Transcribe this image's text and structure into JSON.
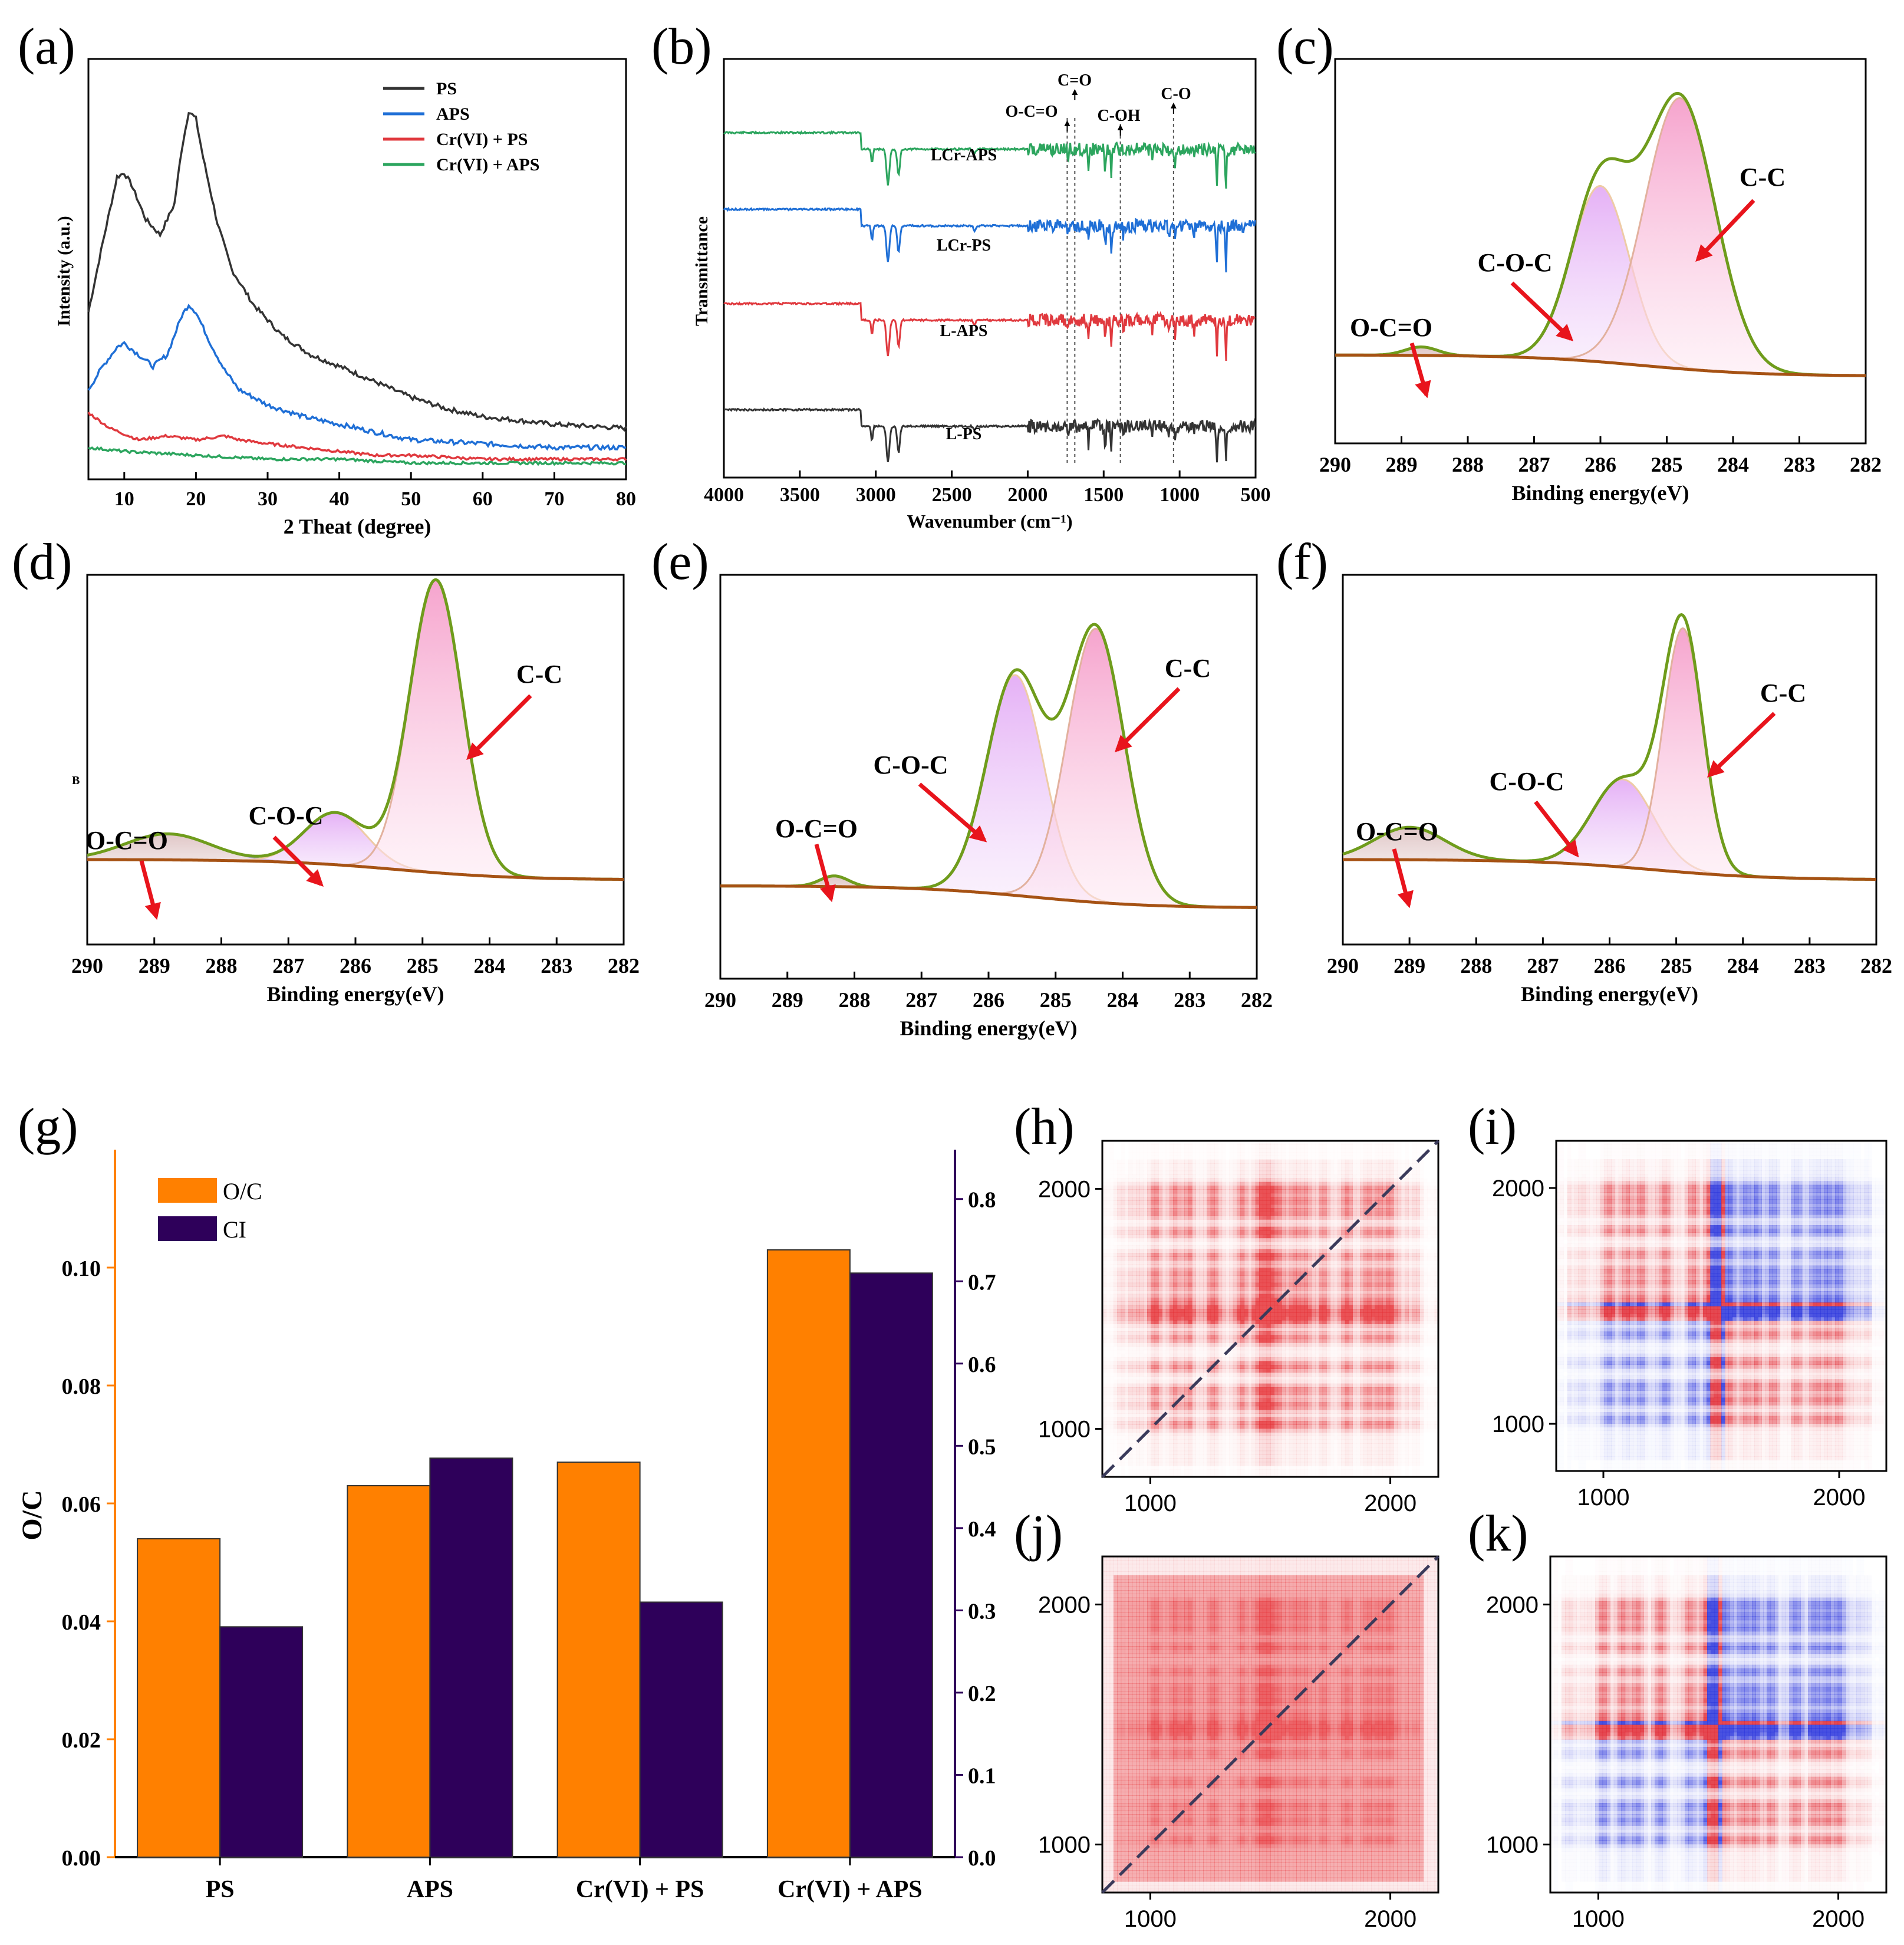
{
  "panels": {
    "a": {
      "label": "(a)",
      "xlabel": "2 Theat (degree)",
      "ylabel": "Intensity (a.u.)",
      "xticks": [
        "10",
        "20",
        "30",
        "40",
        "50",
        "60",
        "70",
        "80"
      ],
      "legend": [
        "PS",
        "APS",
        "Cr(VI) + PS",
        "Cr(VI) + APS"
      ],
      "colors": [
        "#333333",
        "#1f6fd6",
        "#e0393e",
        "#2ca55e"
      ]
    },
    "b": {
      "label": "(b)",
      "xlabel": "Wavenumber (cm⁻¹)",
      "ylabel": "Transmittance",
      "xticks": [
        "4000",
        "3500",
        "3000",
        "2500",
        "2000",
        "1500",
        "1000",
        "500"
      ],
      "series": [
        "LCr-APS",
        "LCr-PS",
        "L-APS",
        "L-PS"
      ],
      "bands": [
        "O-C=O",
        "C=O",
        "C-OH",
        "C-O"
      ]
    },
    "xps_common": {
      "xlabel": "Binding energy(eV)",
      "xticks": [
        "290",
        "289",
        "288",
        "287",
        "286",
        "285",
        "284",
        "283",
        "282"
      ],
      "peaks": [
        "O-C=O",
        "C-O-C",
        "C-C"
      ]
    },
    "c": {
      "label": "(c)"
    },
    "d": {
      "label": "(d)",
      "ylabel_small": "B"
    },
    "e": {
      "label": "(e)"
    },
    "f": {
      "label": "(f)"
    },
    "g": {
      "label": "(g)"
    },
    "h": {
      "label": "(h)",
      "ticks": [
        "1000",
        "2000"
      ]
    },
    "i": {
      "label": "(i)",
      "ticks": [
        "1000",
        "2000"
      ]
    },
    "j": {
      "label": "(j)",
      "ticks": [
        "1000",
        "2000"
      ]
    },
    "k": {
      "label": "(k)",
      "ticks": [
        "1000",
        "2000"
      ]
    }
  },
  "chart_data": [
    {
      "panel": "a",
      "type": "line",
      "title": "",
      "xlabel": "2 Theat (degree)",
      "ylabel": "Intensity (a.u.)",
      "xlim": [
        5,
        80
      ],
      "ylim": [
        0,
        100
      ],
      "series": [
        {
          "name": "PS",
          "color": "#333333",
          "x": [
            5,
            7,
            9,
            10,
            11,
            13,
            15,
            17,
            18,
            19,
            20,
            21,
            23,
            25,
            28,
            32,
            36,
            40,
            45,
            50,
            55,
            60,
            70,
            80
          ],
          "y": [
            42,
            60,
            77,
            78,
            75,
            66,
            62,
            70,
            84,
            94,
            92,
            82,
            65,
            53,
            44,
            36,
            31,
            28,
            24,
            20,
            17,
            15,
            13,
            12
          ]
        },
        {
          "name": "APS",
          "color": "#1f6fd6",
          "x": [
            5,
            7,
            9,
            10,
            12,
            14,
            16,
            18,
            19,
            20,
            22,
            24,
            26,
            30,
            35,
            40,
            45,
            50,
            60,
            70,
            80
          ],
          "y": [
            22,
            28,
            33,
            34,
            31,
            28,
            31,
            41,
            44,
            42,
            34,
            27,
            22,
            18,
            15,
            13,
            11,
            9,
            8,
            7,
            7
          ]
        },
        {
          "name": "Cr(VI) + PS",
          "color": "#e0393e",
          "x": [
            5,
            8,
            12,
            16,
            20,
            24,
            26,
            30,
            35,
            40,
            45,
            50,
            60,
            70,
            80
          ],
          "y": [
            16,
            12,
            9,
            10,
            9,
            10,
            9,
            8,
            7,
            6,
            5,
            5,
            4,
            4,
            4
          ]
        },
        {
          "name": "Cr(VI) + APS",
          "color": "#2ca55e",
          "x": [
            5,
            10,
            20,
            30,
            40,
            50,
            60,
            70,
            80
          ],
          "y": [
            7,
            6,
            5,
            4,
            4,
            3,
            3,
            3,
            3
          ]
        }
      ]
    },
    {
      "panel": "b",
      "type": "line",
      "title": "",
      "xlabel": "Wavenumber (cm⁻¹)",
      "ylabel": "Transmittance",
      "xlim": [
        4000,
        500
      ],
      "series": [
        {
          "name": "LCr-APS",
          "color": "#2ca55e",
          "offset": 3
        },
        {
          "name": "LCr-PS",
          "color": "#1f6fd6",
          "offset": 2
        },
        {
          "name": "L-APS",
          "color": "#e0393e",
          "offset": 1
        },
        {
          "name": "L-PS",
          "color": "#333333",
          "offset": 0
        }
      ],
      "bands_cm": [
        1740,
        1690,
        1390,
        1040
      ],
      "band_labels": [
        "O-C=O",
        "C=O",
        "C-OH",
        "C-O"
      ]
    },
    {
      "panel": "c",
      "type": "area",
      "xlabel": "Binding energy(eV)",
      "xlim": [
        290,
        282
      ],
      "components": [
        {
          "name": "O-C=O",
          "center": 288.7,
          "height": 0.025,
          "width": 0.35
        },
        {
          "name": "C-O-C",
          "center": 286.0,
          "height": 0.52,
          "width": 0.62
        },
        {
          "name": "C-C",
          "center": 284.8,
          "height": 0.8,
          "width": 0.75
        }
      ]
    },
    {
      "panel": "d",
      "type": "area",
      "xlabel": "Binding energy(eV)",
      "xlim": [
        290,
        282
      ],
      "components": [
        {
          "name": "O-C=O",
          "center": 288.8,
          "height": 0.08,
          "width": 0.9
        },
        {
          "name": "C-O-C",
          "center": 286.3,
          "height": 0.16,
          "width": 0.65
        },
        {
          "name": "C-C",
          "center": 284.8,
          "height": 0.9,
          "width": 0.55
        }
      ]
    },
    {
      "panel": "e",
      "type": "area",
      "xlabel": "Binding energy(eV)",
      "xlim": [
        290,
        282
      ],
      "components": [
        {
          "name": "O-C=O",
          "center": 288.3,
          "height": 0.03,
          "width": 0.3
        },
        {
          "name": "C-O-C",
          "center": 285.6,
          "height": 0.62,
          "width": 0.6
        },
        {
          "name": "C-C",
          "center": 284.4,
          "height": 0.77,
          "width": 0.6
        }
      ]
    },
    {
      "panel": "f",
      "type": "area",
      "xlabel": "Binding energy(eV)",
      "xlim": [
        290,
        282
      ],
      "components": [
        {
          "name": "O-C=O",
          "center": 289.0,
          "height": 0.1,
          "width": 0.75
        },
        {
          "name": "C-O-C",
          "center": 285.8,
          "height": 0.27,
          "width": 0.65
        },
        {
          "name": "C-C",
          "center": 284.9,
          "height": 0.75,
          "width": 0.42
        }
      ]
    },
    {
      "panel": "g",
      "type": "bar",
      "categories": [
        "PS",
        "APS",
        "Cr(VI) + PS",
        "Cr(VI) + APS"
      ],
      "series": [
        {
          "name": "O/C",
          "color": "#ff8000",
          "axis": "left",
          "values": [
            0.054,
            0.063,
            0.067,
            0.103
          ]
        },
        {
          "name": "CI",
          "color": "#2e005a",
          "axis": "right",
          "values": [
            0.28,
            0.485,
            0.31,
            0.71
          ]
        }
      ],
      "ylabel": "O/C",
      "ylim_left": [
        0,
        0.12
      ],
      "ylim_right": [
        0,
        0.86
      ],
      "yticks_left": [
        "0.00",
        "0.02",
        "0.04",
        "0.06",
        "0.08",
        "0.10"
      ],
      "yticks_right": [
        "0.0",
        "0.1",
        "0.2",
        "0.3",
        "0.4",
        "0.5",
        "0.6",
        "0.7",
        "0.8"
      ]
    },
    {
      "panel": "h",
      "type": "heatmap",
      "xlim": [
        800,
        2200
      ],
      "ylim": [
        800,
        2200
      ],
      "ticks": [
        1000,
        2000
      ],
      "sign": "positive",
      "diagonal": true
    },
    {
      "panel": "i",
      "type": "heatmap",
      "xlim": [
        800,
        2200
      ],
      "ylim": [
        800,
        2200
      ],
      "ticks": [
        1000,
        2000
      ],
      "sign": "mixed",
      "diagonal": false
    },
    {
      "panel": "j",
      "type": "heatmap",
      "xlim": [
        800,
        2200
      ],
      "ylim": [
        800,
        2200
      ],
      "ticks": [
        1000,
        2000
      ],
      "sign": "positive",
      "diagonal": true
    },
    {
      "panel": "k",
      "type": "heatmap",
      "xlim": [
        800,
        2200
      ],
      "ylim": [
        800,
        2200
      ],
      "ticks": [
        1000,
        2000
      ],
      "sign": "mixed",
      "diagonal": false
    }
  ]
}
